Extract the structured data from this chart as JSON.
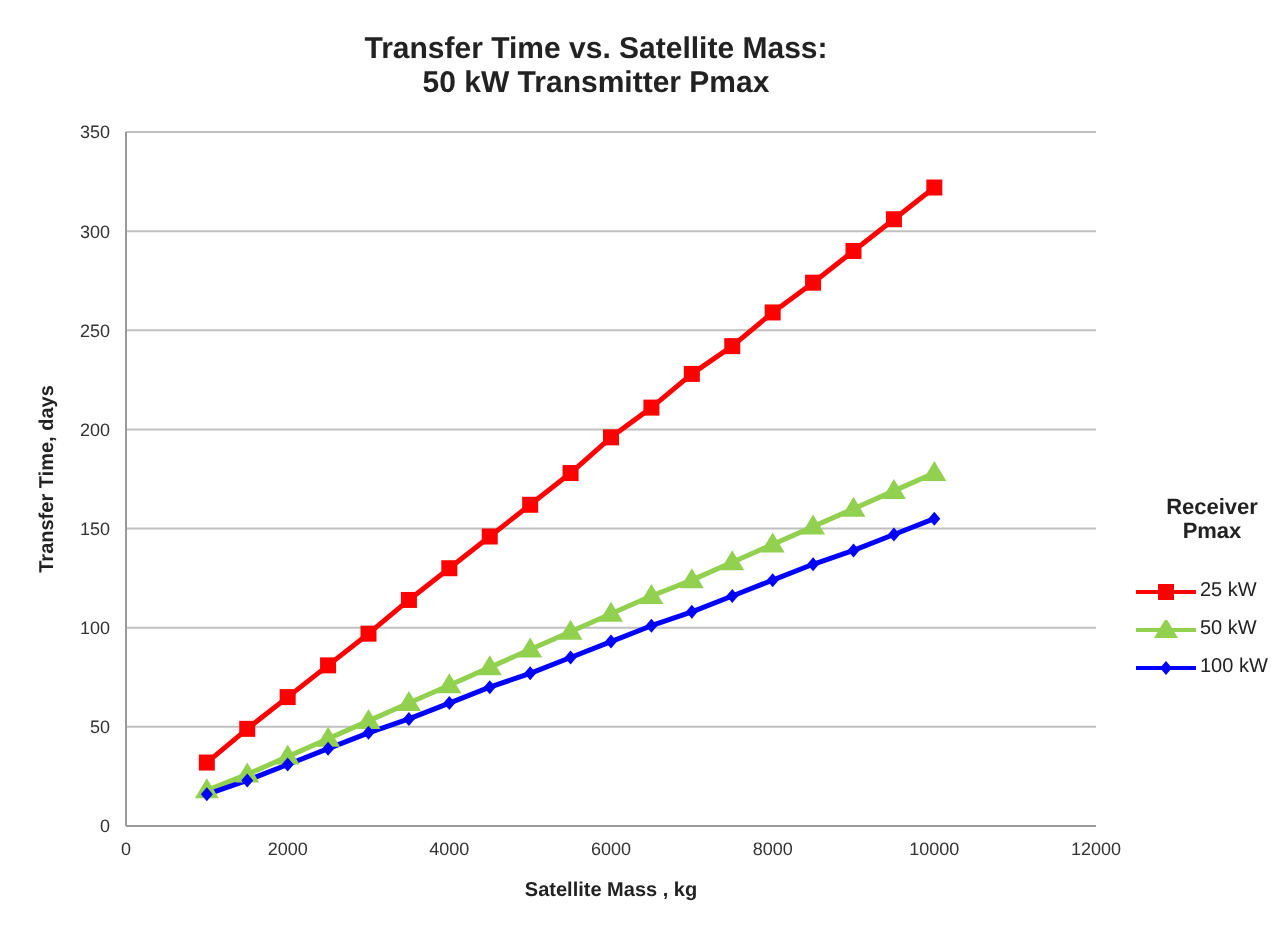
{
  "chart_data": {
    "type": "line",
    "title": "Transfer Time vs. Satellite Mass:\n50 kW Transmitter Pmax",
    "xlabel": "Satellite Mass , kg",
    "ylabel": "Transfer Time, days",
    "legend_title": "Receiver Pmax",
    "x": [
      1000,
      1500,
      2000,
      2500,
      3000,
      3500,
      4000,
      4500,
      5000,
      5500,
      6000,
      6500,
      7000,
      7500,
      8000,
      8500,
      9000,
      9500,
      10000
    ],
    "series": [
      {
        "name": "25 kW",
        "color": "#ff0000",
        "marker": "square",
        "values": [
          32,
          49,
          65,
          81,
          97,
          114,
          130,
          146,
          162,
          178,
          196,
          211,
          228,
          242,
          259,
          274,
          290,
          306,
          322
        ]
      },
      {
        "name": "50 kW",
        "color": "#92d050",
        "marker": "triangle",
        "values": [
          18,
          26,
          35,
          44,
          53,
          62,
          71,
          80,
          89,
          98,
          107,
          116,
          124,
          133,
          142,
          151,
          160,
          169,
          178
        ]
      },
      {
        "name": "100 kW",
        "color": "#0000ff",
        "marker": "diamond",
        "values": [
          16,
          23,
          31,
          39,
          47,
          54,
          62,
          70,
          77,
          85,
          93,
          101,
          108,
          116,
          124,
          132,
          139,
          147,
          155
        ]
      }
    ],
    "xlim": [
      0,
      12000
    ],
    "xticks": [
      0,
      2000,
      4000,
      6000,
      8000,
      10000,
      12000
    ],
    "ylim": [
      0,
      350
    ],
    "yticks": [
      0,
      50,
      100,
      150,
      200,
      250,
      300,
      350
    ],
    "grid": "y",
    "legend": "right",
    "line_style": "solid"
  }
}
